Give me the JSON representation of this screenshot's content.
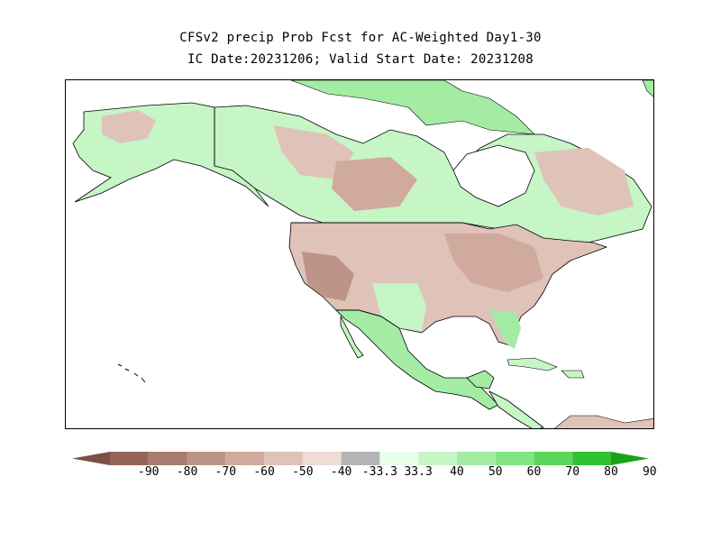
{
  "title": {
    "line1": "CFSv2 precip Prob Fcst for AC-Weighted Day1-30",
    "line2": "IC Date:20231206; Valid Start Date: 20231208"
  },
  "legend": {
    "labels": [
      "-90",
      "-80",
      "-70",
      "-60",
      "-50",
      "-40",
      "-33.3",
      "33.3",
      "40",
      "50",
      "60",
      "70",
      "80",
      "90"
    ],
    "colors": [
      "#7d4f45",
      "#94665a",
      "#a87c70",
      "#bd9487",
      "#cfaa9d",
      "#dfc2b8",
      "#eedcd5",
      "#b4b4b4",
      "#eaffea",
      "#c6f5c6",
      "#a4eca4",
      "#82e482",
      "#5cd65c",
      "#31c231",
      "#1aa31a"
    ]
  },
  "colors": {
    "below_light": "#dfc2b8",
    "below_mid": "#cfaa9d",
    "above_light": "#c6f5c6",
    "above_mid": "#a4eca4",
    "ocean": "#ffffff",
    "outline": "#000000"
  }
}
